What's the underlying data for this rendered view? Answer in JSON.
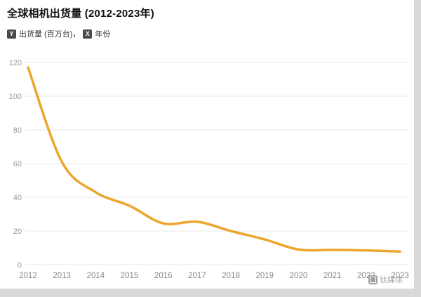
{
  "page": {
    "title": "全球相机出货量 (2012-2023年)",
    "legend": {
      "y_badge": "Y",
      "y_label": "出货量 (百万台)，",
      "x_badge": "X",
      "x_label": "年份"
    },
    "watermark": {
      "label": "钛媒体"
    }
  },
  "chart_data": {
    "type": "line",
    "title": "全球相机出货量 (2012-2023年)",
    "xlabel": "年份",
    "ylabel": "出货量 (百万台)",
    "x": [
      2012,
      2013,
      2014,
      2015,
      2016,
      2017,
      2018,
      2019,
      2020,
      2021,
      2022,
      2023
    ],
    "values": [
      117,
      61,
      43,
      35,
      24.5,
      25.5,
      20,
      15,
      9,
      8.8,
      8.5,
      7.8
    ],
    "ylim": [
      0,
      120
    ],
    "yticks": [
      0,
      20,
      40,
      60,
      80,
      100,
      120
    ],
    "grid": true,
    "legend_position": "top-left",
    "line_color": "#ECA62B",
    "grid_color": "#e7e7e7",
    "tick_color": "#999999"
  }
}
